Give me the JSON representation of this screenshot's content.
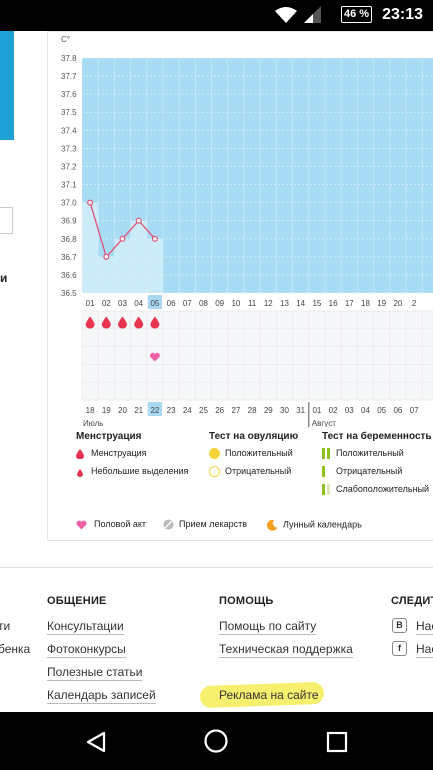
{
  "status_bar": {
    "battery": "46 %",
    "time": "23:13"
  },
  "left_remnants": {
    "cut_letter": "и"
  },
  "chart": {
    "unit": "C°",
    "y_ticks": [
      "37.8",
      "37.7",
      "37.6",
      "37.5",
      "37.4",
      "37.3",
      "37.2",
      "37.1",
      "37.0",
      "36.9",
      "36.8",
      "36.7",
      "36.6",
      "36.5"
    ],
    "cycle_days": [
      "01",
      "02",
      "03",
      "04",
      "05",
      "06",
      "07",
      "08",
      "09",
      "10",
      "11",
      "12",
      "13",
      "14",
      "15",
      "16",
      "17",
      "18",
      "19",
      "20",
      "2"
    ],
    "highlighted_cycle_day": "05",
    "calendar_dates": [
      "18",
      "19",
      "20",
      "21",
      "22",
      "23",
      "24",
      "25",
      "26",
      "27",
      "28",
      "29",
      "30",
      "31",
      "01",
      "02",
      "03",
      "04",
      "05",
      "06",
      "07"
    ],
    "month_july": "Июль",
    "month_august": "Август",
    "colors": {
      "bg_blue": "#a8dcf4",
      "line": "#e0507a",
      "menstruation": "#e8344e",
      "heart": "#f062a8",
      "highlight": "#a9d8f2"
    }
  },
  "chart_data": {
    "type": "line",
    "x": [
      "01",
      "02",
      "03",
      "04",
      "05"
    ],
    "values": [
      37.0,
      36.7,
      36.8,
      36.9,
      36.8
    ],
    "ylim": [
      36.5,
      37.8
    ],
    "ylabel": "C°"
  },
  "legend": {
    "menstruation": {
      "title": "Менструация",
      "items": [
        "Менструация",
        "Небольшие выделения"
      ]
    },
    "ovulation": {
      "title": "Тест на овуляцию",
      "items": [
        "Положительный",
        "Отрицательный"
      ]
    },
    "pregnancy": {
      "title": "Тест на беременность",
      "items": [
        "Положительный",
        "Отрицательный",
        "Слабоположительный"
      ]
    },
    "bottom": [
      "Половой акт",
      "Прием лекарств",
      "Лунный календарь"
    ]
  },
  "footer": {
    "left_cut": [
      "ти",
      "бенка"
    ],
    "col1": {
      "title": "ОБЩЕНИЕ",
      "links": [
        "Консультации",
        "Фотоконкурсы",
        "Полезные статьи",
        "Календарь записей"
      ]
    },
    "col2": {
      "title": "ПОМОЩЬ",
      "links": [
        "Помощь по сайту",
        "Техническая поддержка",
        "Реклама на сайте"
      ]
    },
    "col3": {
      "title": "СЛЕДИТЕ",
      "links": [
        "Нас",
        "Нас"
      ],
      "icons": [
        "В",
        "f"
      ]
    }
  }
}
